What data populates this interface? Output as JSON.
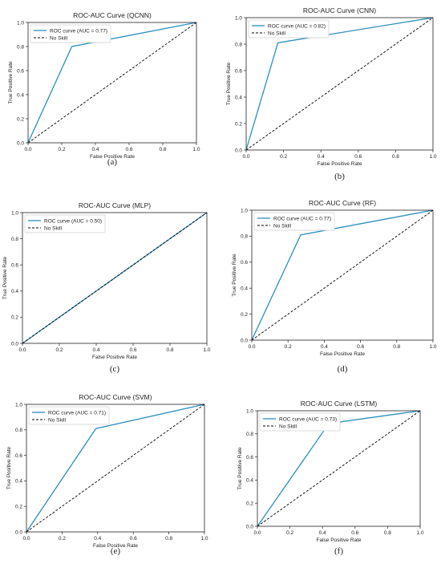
{
  "chart_data": [
    {
      "type": "line",
      "title": "ROC-AUC Curve (QCNN)",
      "xlabel": "False Positive Rate",
      "ylabel": "True Positive Rate",
      "xlim": [
        0,
        1
      ],
      "ylim": [
        0,
        1
      ],
      "xticks": [
        "0.0",
        "0.2",
        "0.4",
        "0.6",
        "0.8",
        "1.0"
      ],
      "yticks": [
        "0.0",
        "0.2",
        "0.4",
        "0.6",
        "0.8",
        "1.0"
      ],
      "legend": "top-left",
      "series": [
        {
          "name": "ROC curve (AUC = 0.77)",
          "color": "#2b8fbd",
          "style": "solid",
          "x": [
            0,
            0.26,
            1
          ],
          "y": [
            0,
            0.8,
            1
          ]
        },
        {
          "name": "No Skill",
          "color": "#000000",
          "style": "dashed",
          "x": [
            0,
            1
          ],
          "y": [
            0,
            1
          ]
        }
      ],
      "caption": "(a)"
    },
    {
      "type": "line",
      "title": "ROC-AUC Curve (CNN)",
      "xlabel": "False Positive Rate",
      "ylabel": "True Positive Rate",
      "xlim": [
        0,
        1
      ],
      "ylim": [
        0,
        1
      ],
      "xticks": [
        "0.0",
        "0.2",
        "0.4",
        "0.6",
        "0.8",
        "1.0"
      ],
      "yticks": [
        "0.0",
        "0.2",
        "0.4",
        "0.6",
        "0.8",
        "1.0"
      ],
      "legend": "top-left",
      "series": [
        {
          "name": "ROC curve (AUC = 0.82)",
          "color": "#2b8fbd",
          "style": "solid",
          "x": [
            0,
            0.17,
            1
          ],
          "y": [
            0,
            0.81,
            1
          ]
        },
        {
          "name": "No Skill",
          "color": "#000000",
          "style": "dashed",
          "x": [
            0,
            1
          ],
          "y": [
            0,
            1
          ]
        }
      ],
      "caption": "(b)"
    },
    {
      "type": "line",
      "title": "ROC-AUC Curve (MLP)",
      "xlabel": "False Positive Rate",
      "ylabel": "True Positive Rate",
      "xlim": [
        0,
        1
      ],
      "ylim": [
        0,
        1
      ],
      "xticks": [
        "0.0",
        "0.2",
        "0.4",
        "0.6",
        "0.8",
        "1.0"
      ],
      "yticks": [
        "0.0",
        "0.2",
        "0.4",
        "0.6",
        "0.8",
        "1.0"
      ],
      "legend": "top-left",
      "series": [
        {
          "name": "ROC curve (AUC = 0.50)",
          "color": "#2b8fbd",
          "style": "solid",
          "x": [
            0,
            1
          ],
          "y": [
            0,
            1
          ]
        },
        {
          "name": "No Skill",
          "color": "#000000",
          "style": "dashed",
          "x": [
            0,
            1
          ],
          "y": [
            0,
            1
          ]
        }
      ],
      "caption": "(c)"
    },
    {
      "type": "line",
      "title": "ROC-AUC Curve (RF)",
      "xlabel": "False Positive Rate",
      "ylabel": "True Positive Rate",
      "xlim": [
        0,
        1
      ],
      "ylim": [
        0,
        1
      ],
      "xticks": [
        "0.0",
        "0.2",
        "0.4",
        "0.6",
        "0.8",
        "1.0"
      ],
      "yticks": [
        "0.0",
        "0.2",
        "0.4",
        "0.6",
        "0.8",
        "1.0"
      ],
      "legend": "top-left",
      "series": [
        {
          "name": "ROC curve (AUC = 0.77)",
          "color": "#2b8fbd",
          "style": "solid",
          "x": [
            0,
            0.27,
            1
          ],
          "y": [
            0,
            0.81,
            1
          ]
        },
        {
          "name": "No Skill",
          "color": "#000000",
          "style": "dashed",
          "x": [
            0,
            1
          ],
          "y": [
            0,
            1
          ]
        }
      ],
      "caption": "(d)"
    },
    {
      "type": "line",
      "title": "ROC-AUC Curve (SVM)",
      "xlabel": "False Positive Rate",
      "ylabel": "True Positive Rate",
      "xlim": [
        0,
        1
      ],
      "ylim": [
        0,
        1
      ],
      "xticks": [
        "0.0",
        "0.2",
        "0.4",
        "0.6",
        "0.8",
        "1.0"
      ],
      "yticks": [
        "0.0",
        "0.2",
        "0.4",
        "0.6",
        "0.8",
        "1.0"
      ],
      "legend": "top-left",
      "series": [
        {
          "name": "ROC curve (AUC = 0.71)",
          "color": "#2b8fbd",
          "style": "solid",
          "x": [
            0,
            0.39,
            1
          ],
          "y": [
            0,
            0.81,
            1
          ]
        },
        {
          "name": "No Skill",
          "color": "#000000",
          "style": "dashed",
          "x": [
            0,
            1
          ],
          "y": [
            0,
            1
          ]
        }
      ],
      "caption": "(e)"
    },
    {
      "type": "line",
      "title": "ROC-AUC Curve (LSTM)",
      "xlabel": "False Positive Rate",
      "ylabel": "True Positive Rate",
      "xlim": [
        0,
        1
      ],
      "ylim": [
        0,
        1
      ],
      "xticks": [
        "0.0",
        "0.2",
        "0.4",
        "0.6",
        "0.8",
        "1.0"
      ],
      "yticks": [
        "0.0",
        "0.2",
        "0.4",
        "0.6",
        "0.8",
        "1.0"
      ],
      "legend": "top-left",
      "series": [
        {
          "name": "ROC curve (AUC = 0.73)",
          "color": "#2b8fbd",
          "style": "solid",
          "x": [
            0,
            0.44,
            1
          ],
          "y": [
            0,
            0.89,
            1
          ]
        },
        {
          "name": "No Skill",
          "color": "#000000",
          "style": "dashed",
          "x": [
            0,
            1
          ],
          "y": [
            0,
            1
          ]
        }
      ],
      "caption": "(f)"
    }
  ]
}
